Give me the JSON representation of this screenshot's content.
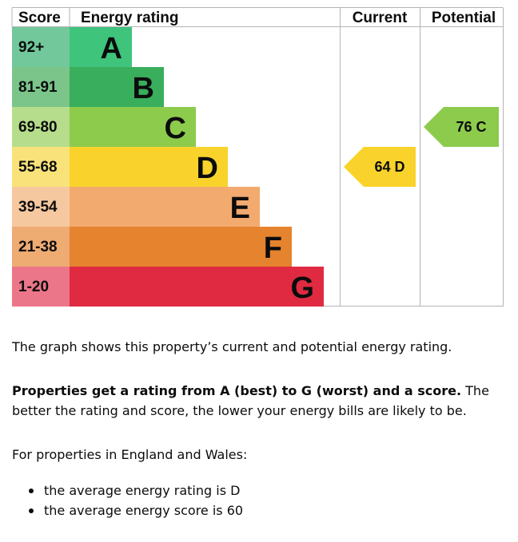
{
  "chart_data": {
    "type": "bar",
    "headers": {
      "score": "Score",
      "rating": "Energy rating",
      "current": "Current",
      "potential": "Potential"
    },
    "bands": [
      {
        "range": "92+",
        "letter": "A",
        "color": "#3ec47b",
        "score_color": "#72c89b"
      },
      {
        "range": "81-91",
        "letter": "B",
        "color": "#39ae5d",
        "score_color": "#7bc58b"
      },
      {
        "range": "69-80",
        "letter": "C",
        "color": "#8dcb4d",
        "score_color": "#b6dd8b"
      },
      {
        "range": "55-68",
        "letter": "D",
        "color": "#f9d32b",
        "score_color": "#fae27a"
      },
      {
        "range": "39-54",
        "letter": "E",
        "color": "#f3aa6e",
        "score_color": "#f6c8a0"
      },
      {
        "range": "21-38",
        "letter": "F",
        "color": "#e5832f",
        "score_color": "#eeab72"
      },
      {
        "range": "1-20",
        "letter": "G",
        "color": "#e02a41",
        "score_color": "#ec7689"
      }
    ],
    "current": {
      "score": 64,
      "letter": "D",
      "label": "64  D",
      "color": "#f9d32b"
    },
    "potential": {
      "score": 76,
      "letter": "C",
      "label": "76  C",
      "color": "#8dcb4d"
    },
    "grid_color": "#b1b4b6"
  },
  "text": {
    "line1": "The graph shows this property’s current and potential energy rating.",
    "p2_bold": "Properties get a rating from A (best) to G (worst) and a score.",
    "p2_rest": " The better the rating and score, the lower your energy bills are likely to be.",
    "line3": "For properties in England and Wales:",
    "bullets": [
      "the average energy rating is D",
      "the average energy score is 60"
    ]
  }
}
